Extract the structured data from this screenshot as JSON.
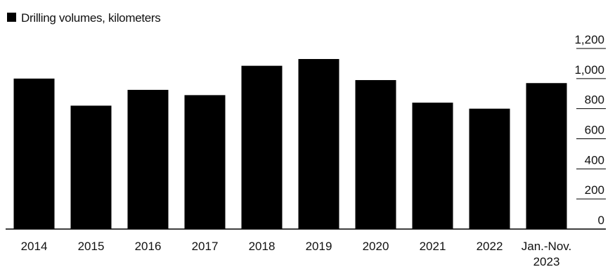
{
  "chart_data": {
    "type": "bar",
    "legend": {
      "label": "Drilling volumes, kilometers",
      "placement": "top-left"
    },
    "categories": [
      "2014",
      "2015",
      "2016",
      "2017",
      "2018",
      "2019",
      "2020",
      "2021",
      "2022",
      "Jan.-Nov. 2023"
    ],
    "category_lines": [
      [
        "2014"
      ],
      [
        "2015"
      ],
      [
        "2016"
      ],
      [
        "2017"
      ],
      [
        "2018"
      ],
      [
        "2019"
      ],
      [
        "2020"
      ],
      [
        "2021"
      ],
      [
        "2022"
      ],
      [
        "Jan.-Nov.",
        "2023"
      ]
    ],
    "series": [
      {
        "name": "Drilling volumes, kilometers",
        "values": [
          1000,
          820,
          925,
          890,
          1085,
          1130,
          990,
          840,
          800,
          970
        ]
      }
    ],
    "ylim": [
      0,
      1200
    ],
    "y_ticks": [
      0,
      200,
      400,
      600,
      800,
      1000,
      1200
    ],
    "y_tick_labels": [
      "0",
      "200",
      "400",
      "600",
      "800",
      "1,000",
      "1,200"
    ],
    "y_axis_position": "right",
    "grid": true,
    "colors": {
      "bar": "#000000",
      "grid": "#000000",
      "text": "#111111",
      "background": "#ffffff"
    }
  }
}
